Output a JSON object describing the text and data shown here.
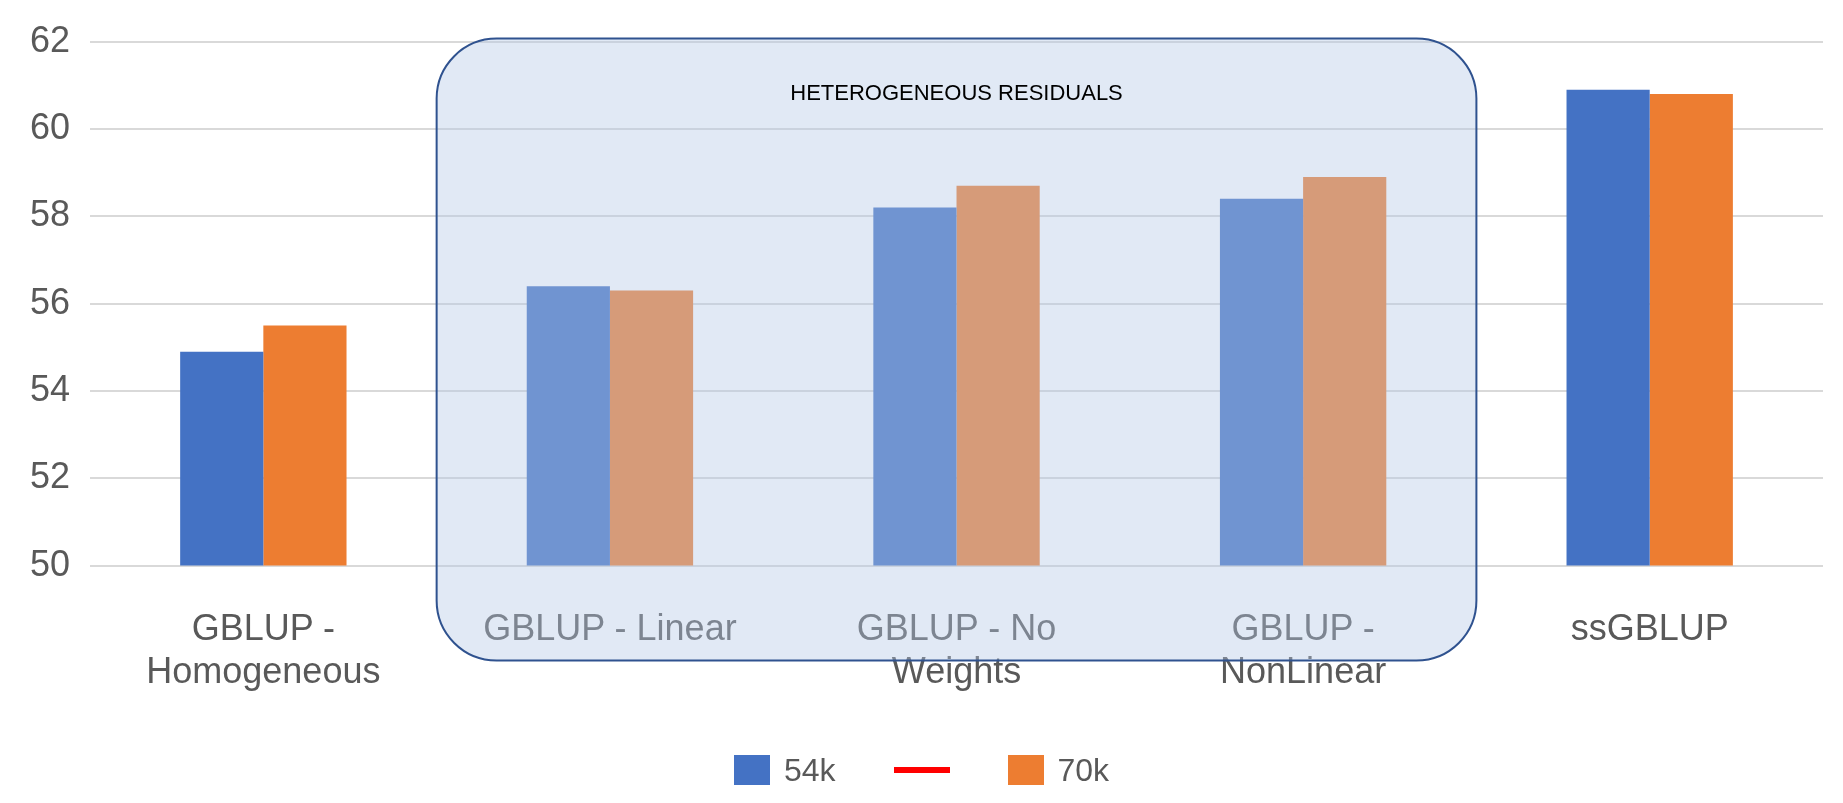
{
  "chart_data": {
    "type": "bar",
    "categories": [
      "GBLUP - Homogeneous",
      "GBLUP - Linear",
      "GBLUP - No Weights",
      "GBLUP - NonLinear",
      "ssGBLUP"
    ],
    "series": [
      {
        "name": "54k",
        "color": "#4472c4",
        "values": [
          54.9,
          56.4,
          58.2,
          58.4,
          60.9
        ]
      },
      {
        "name": "70k",
        "color": "#ed7d31",
        "values": [
          55.5,
          56.3,
          58.7,
          58.9,
          60.8
        ]
      }
    ],
    "ylim": [
      50,
      62
    ],
    "yticks": [
      50,
      52,
      54,
      56,
      58,
      60,
      62
    ],
    "grid": "y",
    "legend": "bottom",
    "bands": [
      {
        "axis": "x",
        "from": "GBLUP - Linear",
        "to": "GBLUP - NonLinear",
        "label": "HETEROGENEOUS RESIDUALS",
        "color": "#b4c7e7"
      }
    ]
  }
}
